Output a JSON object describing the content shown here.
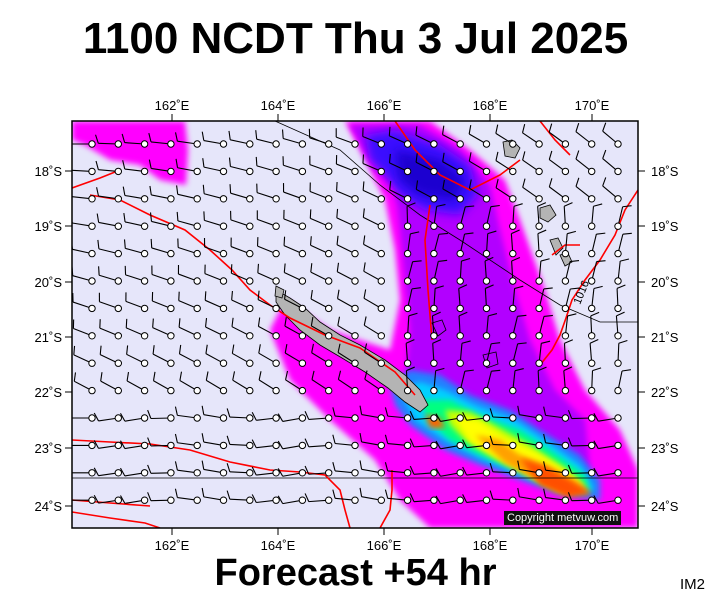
{
  "title": "1100 NCDT Thu 3 Jul 2025",
  "footer": "Forecast +54 hr",
  "corner_label": "IM2",
  "copyright": "Copyright metvuw.com",
  "contour_label": "1016",
  "axes": {
    "lon_labels": [
      "162˚E",
      "164˚E",
      "166˚E",
      "168˚E",
      "170˚E"
    ],
    "lat_labels": [
      "18˚S",
      "19˚S",
      "20˚S",
      "21˚S",
      "22˚S",
      "23˚S",
      "24˚S"
    ]
  },
  "colors": {
    "ocean": "#e6e6fa",
    "land": "#b4b4b4",
    "isobar": "#ff0000",
    "rain_light": "#ff00ff",
    "rain_moderate": "#b200ff",
    "rain_heavy": "#0000ff",
    "rain_cyan": "#00c8ff",
    "rain_green": "#00ff80",
    "rain_yellow": "#ffff00",
    "rain_orange": "#ffa000",
    "rain_red": "#ff3c00"
  },
  "legend": {}
}
